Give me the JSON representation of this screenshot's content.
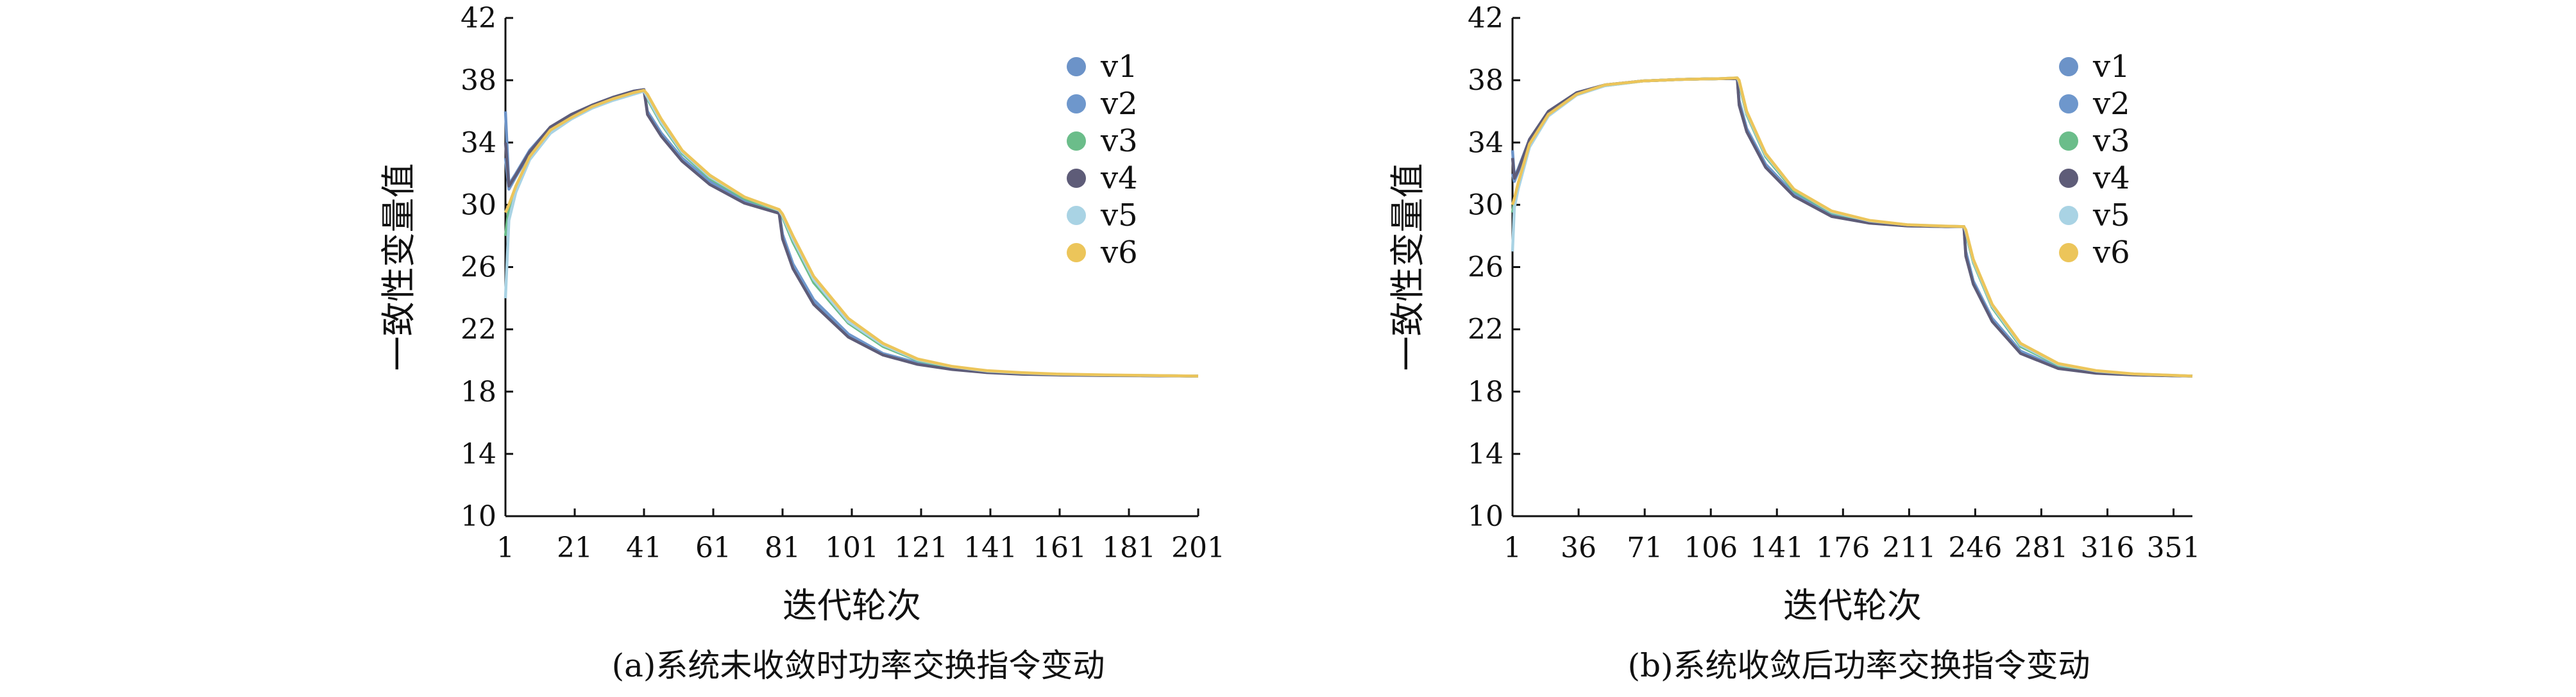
{
  "chart_data": [
    {
      "type": "line",
      "caption": "(a)系统未收敛时功率交换指令变动",
      "xlabel": "迭代轮次",
      "ylabel": "一致性变量值",
      "xlim": [
        1,
        201
      ],
      "ylim": [
        10,
        42
      ],
      "xticks": [
        1,
        21,
        41,
        61,
        81,
        101,
        121,
        141,
        161,
        181,
        201
      ],
      "yticks": [
        10,
        14,
        18,
        22,
        26,
        30,
        34,
        38,
        42
      ],
      "legend_position": "top-right",
      "series": [
        {
          "name": "v1",
          "color": "#6c93c8",
          "x": [
            1,
            2,
            4,
            8,
            14,
            20,
            26,
            32,
            38,
            41,
            42,
            46,
            52,
            60,
            70,
            80,
            81,
            84,
            90,
            100,
            110,
            120,
            130,
            140,
            150,
            160,
            175,
            190,
            201
          ],
          "y": [
            36.0,
            31.3,
            32.0,
            33.5,
            35.0,
            35.8,
            36.4,
            36.9,
            37.3,
            37.4,
            35.9,
            34.5,
            32.9,
            31.4,
            30.2,
            29.5,
            28.0,
            26.1,
            23.8,
            21.6,
            20.4,
            19.8,
            19.45,
            19.25,
            19.15,
            19.1,
            19.05,
            19.02,
            19.0
          ]
        },
        {
          "name": "v2",
          "color": "#6e97cc",
          "x": [
            1,
            2,
            4,
            8,
            14,
            20,
            26,
            32,
            38,
            41,
            42,
            46,
            52,
            60,
            70,
            80,
            81,
            84,
            90,
            100,
            110,
            120,
            130,
            140,
            150,
            160,
            175,
            190,
            201
          ],
          "y": [
            33.0,
            31.0,
            31.8,
            33.3,
            34.9,
            35.7,
            36.3,
            36.8,
            37.2,
            37.3,
            36.0,
            34.6,
            33.0,
            31.5,
            30.3,
            29.55,
            28.1,
            26.2,
            23.9,
            21.7,
            20.45,
            19.85,
            19.5,
            19.28,
            19.16,
            19.1,
            19.05,
            19.02,
            19.0
          ]
        },
        {
          "name": "v3",
          "color": "#6bbd8a",
          "x": [
            1,
            2,
            4,
            8,
            14,
            20,
            26,
            32,
            38,
            41,
            42,
            46,
            52,
            60,
            70,
            80,
            81,
            84,
            90,
            100,
            110,
            120,
            130,
            140,
            150,
            160,
            175,
            190,
            201
          ],
          "y": [
            28.0,
            29.8,
            31.0,
            33.0,
            34.7,
            35.6,
            36.3,
            36.8,
            37.2,
            37.35,
            36.8,
            35.2,
            33.3,
            31.7,
            30.4,
            29.6,
            29.2,
            27.6,
            25.0,
            22.4,
            20.9,
            20.0,
            19.55,
            19.3,
            19.18,
            19.1,
            19.05,
            19.02,
            19.0
          ]
        },
        {
          "name": "v4",
          "color": "#5e5c78",
          "x": [
            1,
            2,
            4,
            8,
            14,
            20,
            26,
            32,
            38,
            41,
            42,
            46,
            52,
            60,
            70,
            80,
            81,
            84,
            90,
            100,
            110,
            120,
            130,
            140,
            150,
            160,
            175,
            190,
            201
          ],
          "y": [
            34.0,
            31.2,
            31.9,
            33.4,
            35.0,
            35.8,
            36.4,
            36.9,
            37.3,
            37.4,
            35.8,
            34.4,
            32.8,
            31.3,
            30.1,
            29.45,
            27.8,
            25.9,
            23.6,
            21.5,
            20.35,
            19.75,
            19.42,
            19.22,
            19.12,
            19.07,
            19.03,
            19.01,
            19.0
          ]
        },
        {
          "name": "v5",
          "color": "#a9d3e4",
          "x": [
            1,
            2,
            4,
            8,
            14,
            20,
            26,
            32,
            38,
            41,
            42,
            46,
            52,
            60,
            70,
            80,
            81,
            84,
            90,
            100,
            110,
            120,
            130,
            140,
            150,
            160,
            175,
            190,
            201
          ],
          "y": [
            24.0,
            29.0,
            30.8,
            32.9,
            34.6,
            35.5,
            36.2,
            36.7,
            37.1,
            37.3,
            36.9,
            35.3,
            33.4,
            31.8,
            30.5,
            29.65,
            29.3,
            27.8,
            25.2,
            22.5,
            21.0,
            20.05,
            19.6,
            19.32,
            19.2,
            19.12,
            19.06,
            19.03,
            19.0
          ]
        },
        {
          "name": "v6",
          "color": "#ecc55a",
          "x": [
            1,
            2,
            4,
            8,
            14,
            20,
            26,
            32,
            38,
            41,
            42,
            46,
            52,
            60,
            70,
            80,
            81,
            84,
            90,
            100,
            110,
            120,
            130,
            140,
            150,
            160,
            175,
            190,
            201
          ],
          "y": [
            29.5,
            30.0,
            31.2,
            33.1,
            34.8,
            35.6,
            36.3,
            36.8,
            37.2,
            37.35,
            37.1,
            35.5,
            33.5,
            31.9,
            30.5,
            29.7,
            29.4,
            28.0,
            25.4,
            22.7,
            21.1,
            20.1,
            19.62,
            19.35,
            19.22,
            19.13,
            19.07,
            19.03,
            19.0
          ]
        }
      ]
    },
    {
      "type": "line",
      "caption": "(b)系统收敛后功率交换指令变动",
      "xlabel": "迭代轮次",
      "ylabel": "一致性变量值",
      "xlim": [
        1,
        361
      ],
      "ylim": [
        10,
        42
      ],
      "xticks": [
        1,
        36,
        71,
        106,
        141,
        176,
        211,
        246,
        281,
        316,
        351
      ],
      "yticks": [
        10,
        14,
        18,
        22,
        26,
        30,
        34,
        38,
        42
      ],
      "legend_position": "top-right",
      "series": [
        {
          "name": "v1",
          "color": "#6c93c8",
          "x": [
            1,
            2,
            4,
            10,
            20,
            35,
            50,
            70,
            90,
            110,
            120,
            121,
            125,
            135,
            150,
            170,
            190,
            210,
            230,
            240,
            241,
            245,
            255,
            270,
            290,
            310,
            330,
            350,
            361
          ],
          "y": [
            33.5,
            31.8,
            32.3,
            34.2,
            36.0,
            37.2,
            37.7,
            37.95,
            38.05,
            38.1,
            38.1,
            36.5,
            34.8,
            32.5,
            30.6,
            29.3,
            28.85,
            28.65,
            28.6,
            28.6,
            26.8,
            25.0,
            22.6,
            20.5,
            19.5,
            19.2,
            19.08,
            19.02,
            19.0
          ]
        },
        {
          "name": "v2",
          "color": "#6e97cc",
          "x": [
            1,
            2,
            4,
            10,
            20,
            35,
            50,
            70,
            90,
            110,
            120,
            121,
            125,
            135,
            150,
            170,
            190,
            210,
            230,
            240,
            241,
            245,
            255,
            270,
            290,
            310,
            330,
            350,
            361
          ],
          "y": [
            32.0,
            31.5,
            32.1,
            34.1,
            35.9,
            37.15,
            37.7,
            37.95,
            38.05,
            38.1,
            38.1,
            36.7,
            34.9,
            32.6,
            30.7,
            29.35,
            28.87,
            28.66,
            28.6,
            28.6,
            27.0,
            25.1,
            22.7,
            20.6,
            19.55,
            19.22,
            19.09,
            19.03,
            19.0
          ]
        },
        {
          "name": "v3",
          "color": "#6bbd8a",
          "x": [
            1,
            2,
            4,
            10,
            20,
            35,
            50,
            70,
            90,
            110,
            120,
            121,
            125,
            135,
            150,
            170,
            190,
            210,
            230,
            240,
            241,
            245,
            255,
            270,
            290,
            310,
            330,
            350,
            361
          ],
          "y": [
            29.5,
            30.2,
            31.3,
            33.8,
            35.8,
            37.1,
            37.65,
            37.95,
            38.05,
            38.1,
            38.15,
            37.8,
            35.8,
            33.1,
            30.9,
            29.5,
            28.95,
            28.7,
            28.62,
            28.6,
            28.2,
            26.3,
            23.4,
            20.9,
            19.7,
            19.3,
            19.12,
            19.04,
            19.0
          ]
        },
        {
          "name": "v4",
          "color": "#5e5c78",
          "x": [
            1,
            2,
            4,
            10,
            20,
            35,
            50,
            70,
            90,
            110,
            120,
            121,
            125,
            135,
            150,
            170,
            190,
            210,
            230,
            240,
            241,
            245,
            255,
            270,
            290,
            310,
            330,
            350,
            361
          ],
          "y": [
            33.0,
            31.7,
            32.2,
            34.2,
            36.0,
            37.2,
            37.7,
            37.95,
            38.05,
            38.1,
            38.1,
            36.4,
            34.7,
            32.4,
            30.55,
            29.25,
            28.82,
            28.64,
            28.6,
            28.6,
            26.7,
            24.9,
            22.5,
            20.45,
            19.48,
            19.18,
            19.07,
            19.02,
            19.0
          ]
        },
        {
          "name": "v5",
          "color": "#a9d3e4",
          "x": [
            1,
            2,
            4,
            10,
            20,
            35,
            50,
            70,
            90,
            110,
            120,
            121,
            125,
            135,
            150,
            170,
            190,
            210,
            230,
            240,
            241,
            245,
            255,
            270,
            290,
            310,
            330,
            350,
            361
          ],
          "y": [
            27.0,
            29.8,
            31.0,
            33.7,
            35.7,
            37.05,
            37.65,
            37.95,
            38.05,
            38.1,
            38.15,
            37.9,
            35.9,
            33.2,
            31.0,
            29.55,
            28.97,
            28.72,
            28.63,
            28.6,
            28.3,
            26.4,
            23.5,
            21.0,
            19.75,
            19.32,
            19.13,
            19.05,
            19.0
          ]
        },
        {
          "name": "v6",
          "color": "#ecc55a",
          "x": [
            1,
            2,
            4,
            10,
            20,
            35,
            50,
            70,
            90,
            110,
            120,
            121,
            125,
            135,
            150,
            170,
            190,
            210,
            230,
            240,
            241,
            245,
            255,
            270,
            290,
            310,
            330,
            350,
            361
          ],
          "y": [
            30.0,
            30.4,
            31.4,
            33.9,
            35.8,
            37.1,
            37.7,
            37.95,
            38.05,
            38.1,
            38.15,
            38.0,
            36.0,
            33.3,
            31.0,
            29.6,
            29.0,
            28.72,
            28.63,
            28.6,
            28.4,
            26.5,
            23.6,
            21.1,
            19.8,
            19.35,
            19.14,
            19.05,
            19.0
          ]
        }
      ]
    }
  ]
}
